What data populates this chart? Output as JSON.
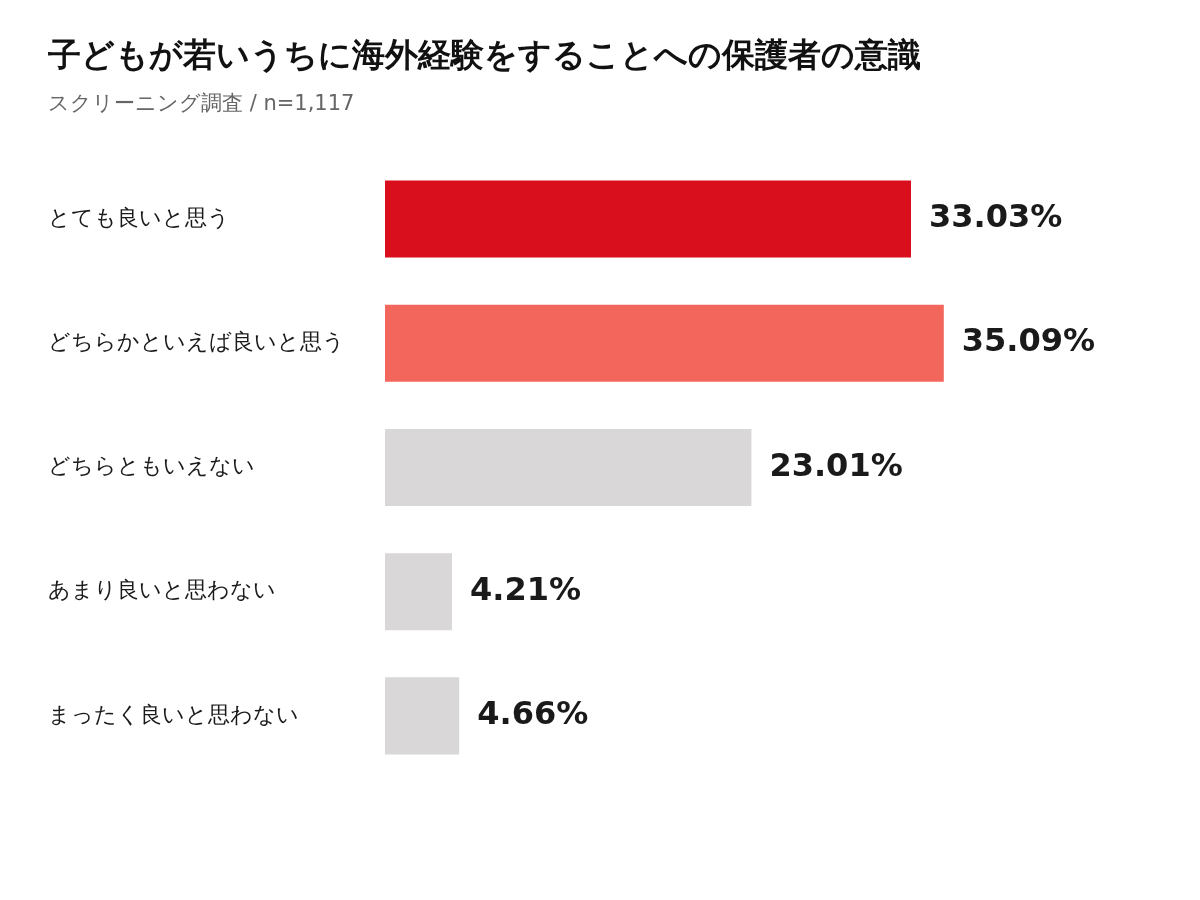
{
  "chart_data": {
    "type": "bar",
    "orientation": "horizontal",
    "title": "子どもが若いうちに海外経験をすることへの保護者の意識",
    "subtitle": "スクリーニング調査 / n=1,117",
    "categories": [
      "とても良いと思う",
      "どちらかといえば良いと思う",
      "どちらともいえない",
      "あまり良いと思わない",
      "まったく良いと思わない"
    ],
    "values": [
      33.03,
      35.09,
      23.01,
      4.21,
      4.66
    ],
    "colors": [
      "#d90f1e",
      "#f2665c",
      "#d9d7d8",
      "#d9d7d8",
      "#d9d7d8"
    ],
    "value_labels": [
      "33.03%",
      "35.09%",
      "23.01%",
      "4.21%",
      "4.66%"
    ],
    "grid": false,
    "legend": false
  }
}
